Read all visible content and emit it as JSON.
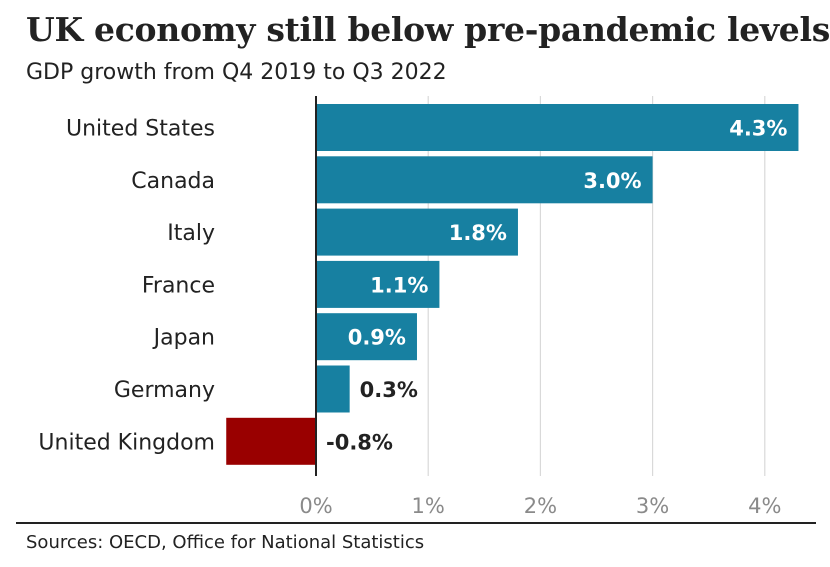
{
  "chart_data": {
    "type": "bar",
    "orientation": "horizontal",
    "title": "UK economy still below pre-pandemic levels",
    "subtitle": "GDP growth from Q4 2019 to Q3 2022",
    "categories": [
      "United States",
      "Canada",
      "Italy",
      "France",
      "Japan",
      "Germany",
      "United Kingdom"
    ],
    "values": [
      4.3,
      3.0,
      1.8,
      1.1,
      0.9,
      0.3,
      -0.8
    ],
    "value_labels": [
      "4.3%",
      "3.0%",
      "1.8%",
      "1.1%",
      "0.9%",
      "0.3%",
      "-0.8%"
    ],
    "xlim": [
      -0.8,
      4.3
    ],
    "xticks": [
      0,
      1,
      2,
      3,
      4
    ],
    "xtick_labels": [
      "0%",
      "1%",
      "2%",
      "3%",
      "4%"
    ],
    "grid": true,
    "legend": false,
    "colors": {
      "positive": "#1780a1",
      "negative": "#990000",
      "grid": "#d9d9d9",
      "axis": "#222222",
      "tick_label": "#8a8a8a",
      "label_inside": "#ffffff",
      "label_outside": "#222222"
    },
    "source": "Sources: OECD, Office for National Statistics"
  }
}
